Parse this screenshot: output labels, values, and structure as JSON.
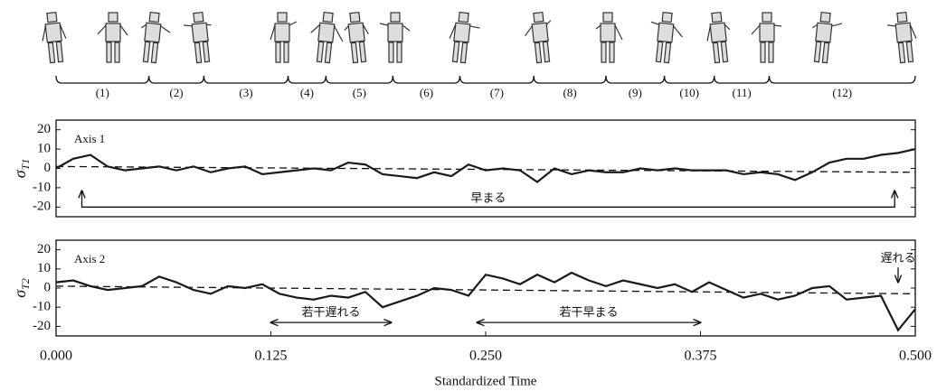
{
  "phases": {
    "labels": [
      "(1)",
      "(2)",
      "(3)",
      "(4)",
      "(5)",
      "(6)",
      "(7)",
      "(8)",
      "(9)",
      "(10)",
      "(11)",
      "(12)"
    ],
    "bounds": [
      0,
      0.054,
      0.086,
      0.135,
      0.157,
      0.196,
      0.235,
      0.278,
      0.32,
      0.354,
      0.383,
      0.415,
      0.5
    ]
  },
  "chart_data": [
    {
      "type": "line",
      "panel_label": "Axis 1",
      "ylabel": {
        "symbol": "σ",
        "subscript": "T1"
      },
      "xlim": [
        0,
        0.5
      ],
      "ylim": [
        -25,
        25
      ],
      "yticks": [
        -20,
        -10,
        0,
        10,
        20
      ],
      "x": [
        0,
        0.01,
        0.02,
        0.03,
        0.04,
        0.05,
        0.06,
        0.07,
        0.08,
        0.09,
        0.1,
        0.11,
        0.12,
        0.13,
        0.14,
        0.15,
        0.16,
        0.17,
        0.18,
        0.19,
        0.2,
        0.21,
        0.22,
        0.23,
        0.24,
        0.25,
        0.26,
        0.27,
        0.28,
        0.29,
        0.3,
        0.31,
        0.32,
        0.33,
        0.34,
        0.35,
        0.36,
        0.37,
        0.38,
        0.39,
        0.4,
        0.41,
        0.42,
        0.43,
        0.44,
        0.45,
        0.46,
        0.47,
        0.48,
        0.49,
        0.5
      ],
      "series": [
        {
          "color": "#1a1a1a",
          "values": [
            0,
            5,
            7,
            1,
            -1,
            0,
            1,
            -1,
            1,
            -2,
            0,
            1,
            -3,
            -2,
            -1,
            0,
            -1,
            3,
            2,
            -3,
            -4,
            -5,
            -2,
            -4,
            2,
            -1,
            0,
            -1,
            -7,
            0,
            -3,
            -1,
            -2,
            -2,
            0,
            -1,
            0,
            -1,
            -1,
            -1,
            -3,
            -2,
            -3,
            -6,
            -2,
            3,
            5,
            5,
            7,
            8,
            10
          ]
        }
      ],
      "reference_line": {
        "x": [
          0,
          0.5
        ],
        "values": [
          1,
          -2
        ]
      },
      "annotations": [
        {
          "text": "早まる",
          "arrow": "ends-up",
          "x": [
            0.015,
            0.488
          ],
          "y": -20
        }
      ]
    },
    {
      "type": "line",
      "panel_label": "Axis 2",
      "ylabel": {
        "symbol": "σ",
        "subscript": "T2"
      },
      "xlabel": "Standardized Time",
      "xlim": [
        0,
        0.5
      ],
      "ylim": [
        -25,
        25
      ],
      "yticks": [
        -20,
        -10,
        0,
        10,
        20
      ],
      "xticks": [
        {
          "value": 0,
          "label": "0.000"
        },
        {
          "value": 0.125,
          "label": "0.125"
        },
        {
          "value": 0.25,
          "label": "0.250"
        },
        {
          "value": 0.375,
          "label": "0.375"
        },
        {
          "value": 0.5,
          "label": "0.500"
        }
      ],
      "x": [
        0,
        0.01,
        0.02,
        0.03,
        0.04,
        0.05,
        0.06,
        0.07,
        0.08,
        0.09,
        0.1,
        0.11,
        0.12,
        0.13,
        0.14,
        0.15,
        0.16,
        0.17,
        0.18,
        0.19,
        0.2,
        0.21,
        0.22,
        0.23,
        0.24,
        0.25,
        0.26,
        0.27,
        0.28,
        0.29,
        0.3,
        0.31,
        0.32,
        0.33,
        0.34,
        0.35,
        0.36,
        0.37,
        0.38,
        0.39,
        0.4,
        0.41,
        0.42,
        0.43,
        0.44,
        0.45,
        0.46,
        0.47,
        0.48,
        0.49,
        0.5
      ],
      "series": [
        {
          "color": "#1a1a1a",
          "values": [
            3,
            4,
            1,
            -1,
            0,
            1,
            6,
            3,
            -1,
            -3,
            1,
            0,
            2,
            -3,
            -5,
            -6,
            -4,
            -5,
            -2,
            -10,
            -7,
            -4,
            0,
            -1,
            -4,
            7,
            5,
            2,
            7,
            3,
            8,
            4,
            1,
            4,
            2,
            0,
            2,
            -2,
            3,
            -1,
            -5,
            -3,
            -6,
            -4,
            0,
            1,
            -6,
            -5,
            -4,
            -22,
            -11
          ]
        }
      ],
      "reference_line": {
        "x": [
          0,
          0.5
        ],
        "values": [
          1,
          -3
        ]
      },
      "annotations": [
        {
          "text": "若干遅れる",
          "arrow": "double",
          "x": [
            0.125,
            0.195
          ],
          "y": -18
        },
        {
          "text": "若干早まる",
          "arrow": "double",
          "x": [
            0.245,
            0.375
          ],
          "y": -18
        },
        {
          "text": "遅れる",
          "arrow": "down",
          "x": 0.49,
          "y": [
            15,
            3
          ]
        }
      ]
    }
  ]
}
